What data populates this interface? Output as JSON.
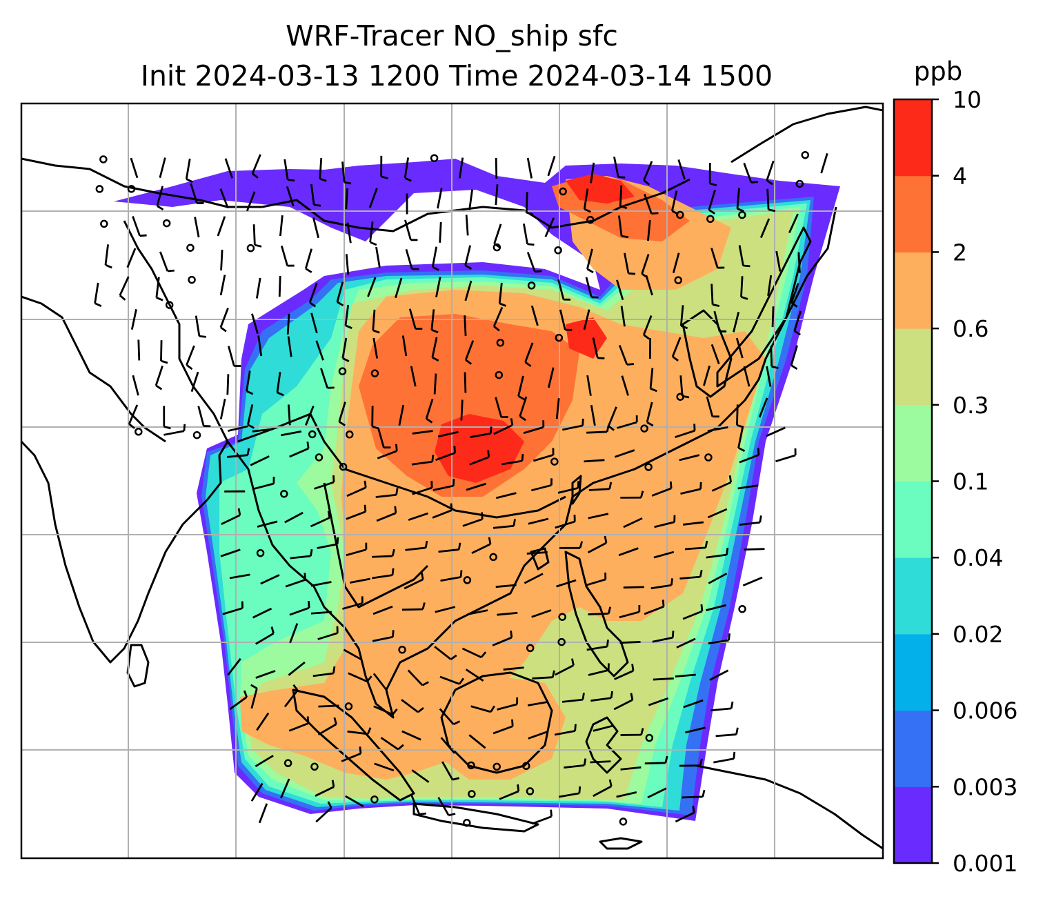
{
  "title": {
    "line1": "WRF-Tracer NO_ship sfc",
    "line2": "Init 2024-03-13 1200 Time 2024-03-14 1500"
  },
  "colorbar": {
    "unit": "ppb",
    "levels": [
      "0.001",
      "0.003",
      "0.006",
      "0.02",
      "0.04",
      "0.1",
      "0.3",
      "0.6",
      "2",
      "4",
      "10"
    ],
    "colors": [
      "#6a2bff",
      "#3471f4",
      "#04b0ea",
      "#2fdcd7",
      "#6bfcc0",
      "#9bfb9e",
      "#cce07f",
      "#fdaf5e",
      "#ff7235",
      "#fe2a19"
    ]
  },
  "map": {
    "gridlines": true,
    "overlays": [
      "coastlines",
      "country-borders",
      "wind-barbs",
      "calm-wind-circles"
    ]
  }
}
